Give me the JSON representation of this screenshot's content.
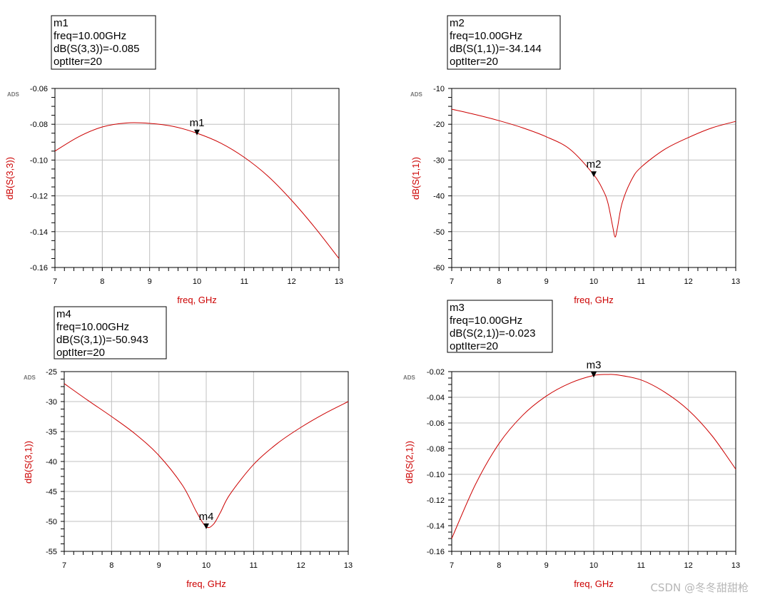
{
  "watermark": "CSDN @冬冬甜甜枪",
  "colors": {
    "trace": "#cc0000",
    "grid": "#c0c0c0",
    "axis_label": "#cc0000"
  },
  "chart_data": [
    {
      "id": "p1",
      "type": "line",
      "ads_tag": "ADS",
      "xlabel": "freq, GHz",
      "ylabel": "dB(S(3,3))",
      "xlim": [
        7,
        13
      ],
      "ylim": [
        -0.16,
        -0.06
      ],
      "xticks": [
        7,
        8,
        9,
        10,
        11,
        12,
        13
      ],
      "yticks": [
        -0.16,
        -0.14,
        -0.12,
        -0.1,
        -0.08,
        -0.06
      ],
      "ytick_labels": [
        "-0.16",
        "-0.14",
        "-0.12",
        "-0.10",
        "-0.08",
        "-0.06"
      ],
      "grid": true,
      "series": [
        {
          "x": [
            7.0,
            7.5,
            8.0,
            8.5,
            9.0,
            9.5,
            10.0,
            10.5,
            11.0,
            11.5,
            12.0,
            12.5,
            13.0
          ],
          "values": [
            -0.095,
            -0.087,
            -0.0815,
            -0.0793,
            -0.0795,
            -0.0812,
            -0.085,
            -0.0905,
            -0.0985,
            -0.109,
            -0.1225,
            -0.138,
            -0.155
          ]
        }
      ],
      "marker": {
        "name": "m1",
        "x": 10.0,
        "y": -0.085,
        "lines": [
          "m1",
          "freq=10.00GHz",
          "dB(S(3,3))=-0.085",
          "optIter=20"
        ]
      }
    },
    {
      "id": "p2",
      "type": "line",
      "ads_tag": "ADS",
      "xlabel": "freq, GHz",
      "ylabel": "dB(S(1,1))",
      "xlim": [
        7,
        13
      ],
      "ylim": [
        -60,
        -10
      ],
      "xticks": [
        7,
        8,
        9,
        10,
        11,
        12,
        13
      ],
      "yticks": [
        -60,
        -50,
        -40,
        -30,
        -20,
        -10
      ],
      "ytick_labels": [
        "-60",
        "-50",
        "-40",
        "-30",
        "-20",
        "-10"
      ],
      "grid": true,
      "series": [
        {
          "x": [
            7.0,
            7.5,
            8.0,
            8.5,
            9.0,
            9.5,
            10.0,
            10.2,
            10.3,
            10.4,
            10.45,
            10.5,
            10.6,
            10.8,
            11.0,
            11.5,
            12.0,
            12.5,
            13.0
          ],
          "values": [
            -15.8,
            -17.3,
            -19.0,
            -21.0,
            -23.5,
            -27.0,
            -34.1,
            -38.5,
            -42.0,
            -48.5,
            -51.5,
            -49.0,
            -42.0,
            -35.5,
            -32.0,
            -27.0,
            -23.7,
            -21.0,
            -19.2
          ]
        }
      ],
      "marker": {
        "name": "m2",
        "x": 10.0,
        "y": -34.144,
        "lines": [
          "m2",
          "freq=10.00GHz",
          "dB(S(1,1))=-34.144",
          "optIter=20"
        ]
      }
    },
    {
      "id": "p4",
      "type": "line",
      "ads_tag": "ADS",
      "xlabel": "freq, GHz",
      "ylabel": "dB(S(3,1))",
      "xlim": [
        7,
        13
      ],
      "ylim": [
        -55,
        -25
      ],
      "xticks": [
        7,
        8,
        9,
        10,
        11,
        12,
        13
      ],
      "yticks": [
        -55,
        -50,
        -45,
        -40,
        -35,
        -30,
        -25
      ],
      "ytick_labels": [
        "-55",
        "-50",
        "-45",
        "-40",
        "-35",
        "-30",
        "-25"
      ],
      "grid": true,
      "series": [
        {
          "x": [
            7.0,
            7.5,
            8.0,
            8.5,
            9.0,
            9.5,
            9.8,
            10.0,
            10.15,
            10.3,
            10.5,
            11.0,
            11.5,
            12.0,
            12.5,
            13.0
          ],
          "values": [
            -27.0,
            -29.8,
            -32.5,
            -35.4,
            -39.0,
            -44.0,
            -48.5,
            -50.9,
            -50.5,
            -48.5,
            -45.5,
            -40.5,
            -37.0,
            -34.3,
            -32.0,
            -30.0
          ]
        }
      ],
      "marker": {
        "name": "m4",
        "x": 10.0,
        "y": -50.943,
        "lines": [
          "m4",
          "freq=10.00GHz",
          "dB(S(3,1))=-50.943",
          "optIter=20"
        ]
      }
    },
    {
      "id": "p3",
      "type": "line",
      "ads_tag": "ADS",
      "xlabel": "freq, GHz",
      "ylabel": "dB(S(2,1))",
      "xlim": [
        7,
        13
      ],
      "ylim": [
        -0.16,
        -0.02
      ],
      "xticks": [
        7,
        8,
        9,
        10,
        11,
        12,
        13
      ],
      "yticks": [
        -0.16,
        -0.14,
        -0.12,
        -0.1,
        -0.08,
        -0.06,
        -0.04,
        -0.02
      ],
      "ytick_labels": [
        "-0.16",
        "-0.14",
        "-0.12",
        "-0.10",
        "-0.08",
        "-0.06",
        "-0.04",
        "-0.02"
      ],
      "grid": true,
      "series": [
        {
          "x": [
            7.0,
            7.5,
            8.0,
            8.5,
            9.0,
            9.5,
            10.0,
            10.3,
            10.5,
            11.0,
            11.5,
            12.0,
            12.5,
            13.0
          ],
          "values": [
            -0.15,
            -0.108,
            -0.076,
            -0.054,
            -0.039,
            -0.029,
            -0.023,
            -0.0222,
            -0.0226,
            -0.0265,
            -0.036,
            -0.05,
            -0.07,
            -0.096
          ]
        }
      ],
      "marker": {
        "name": "m3",
        "x": 10.0,
        "y": -0.023,
        "lines": [
          "m3",
          "freq=10.00GHz",
          "dB(S(2,1))=-0.023",
          "optIter=20"
        ]
      }
    }
  ]
}
